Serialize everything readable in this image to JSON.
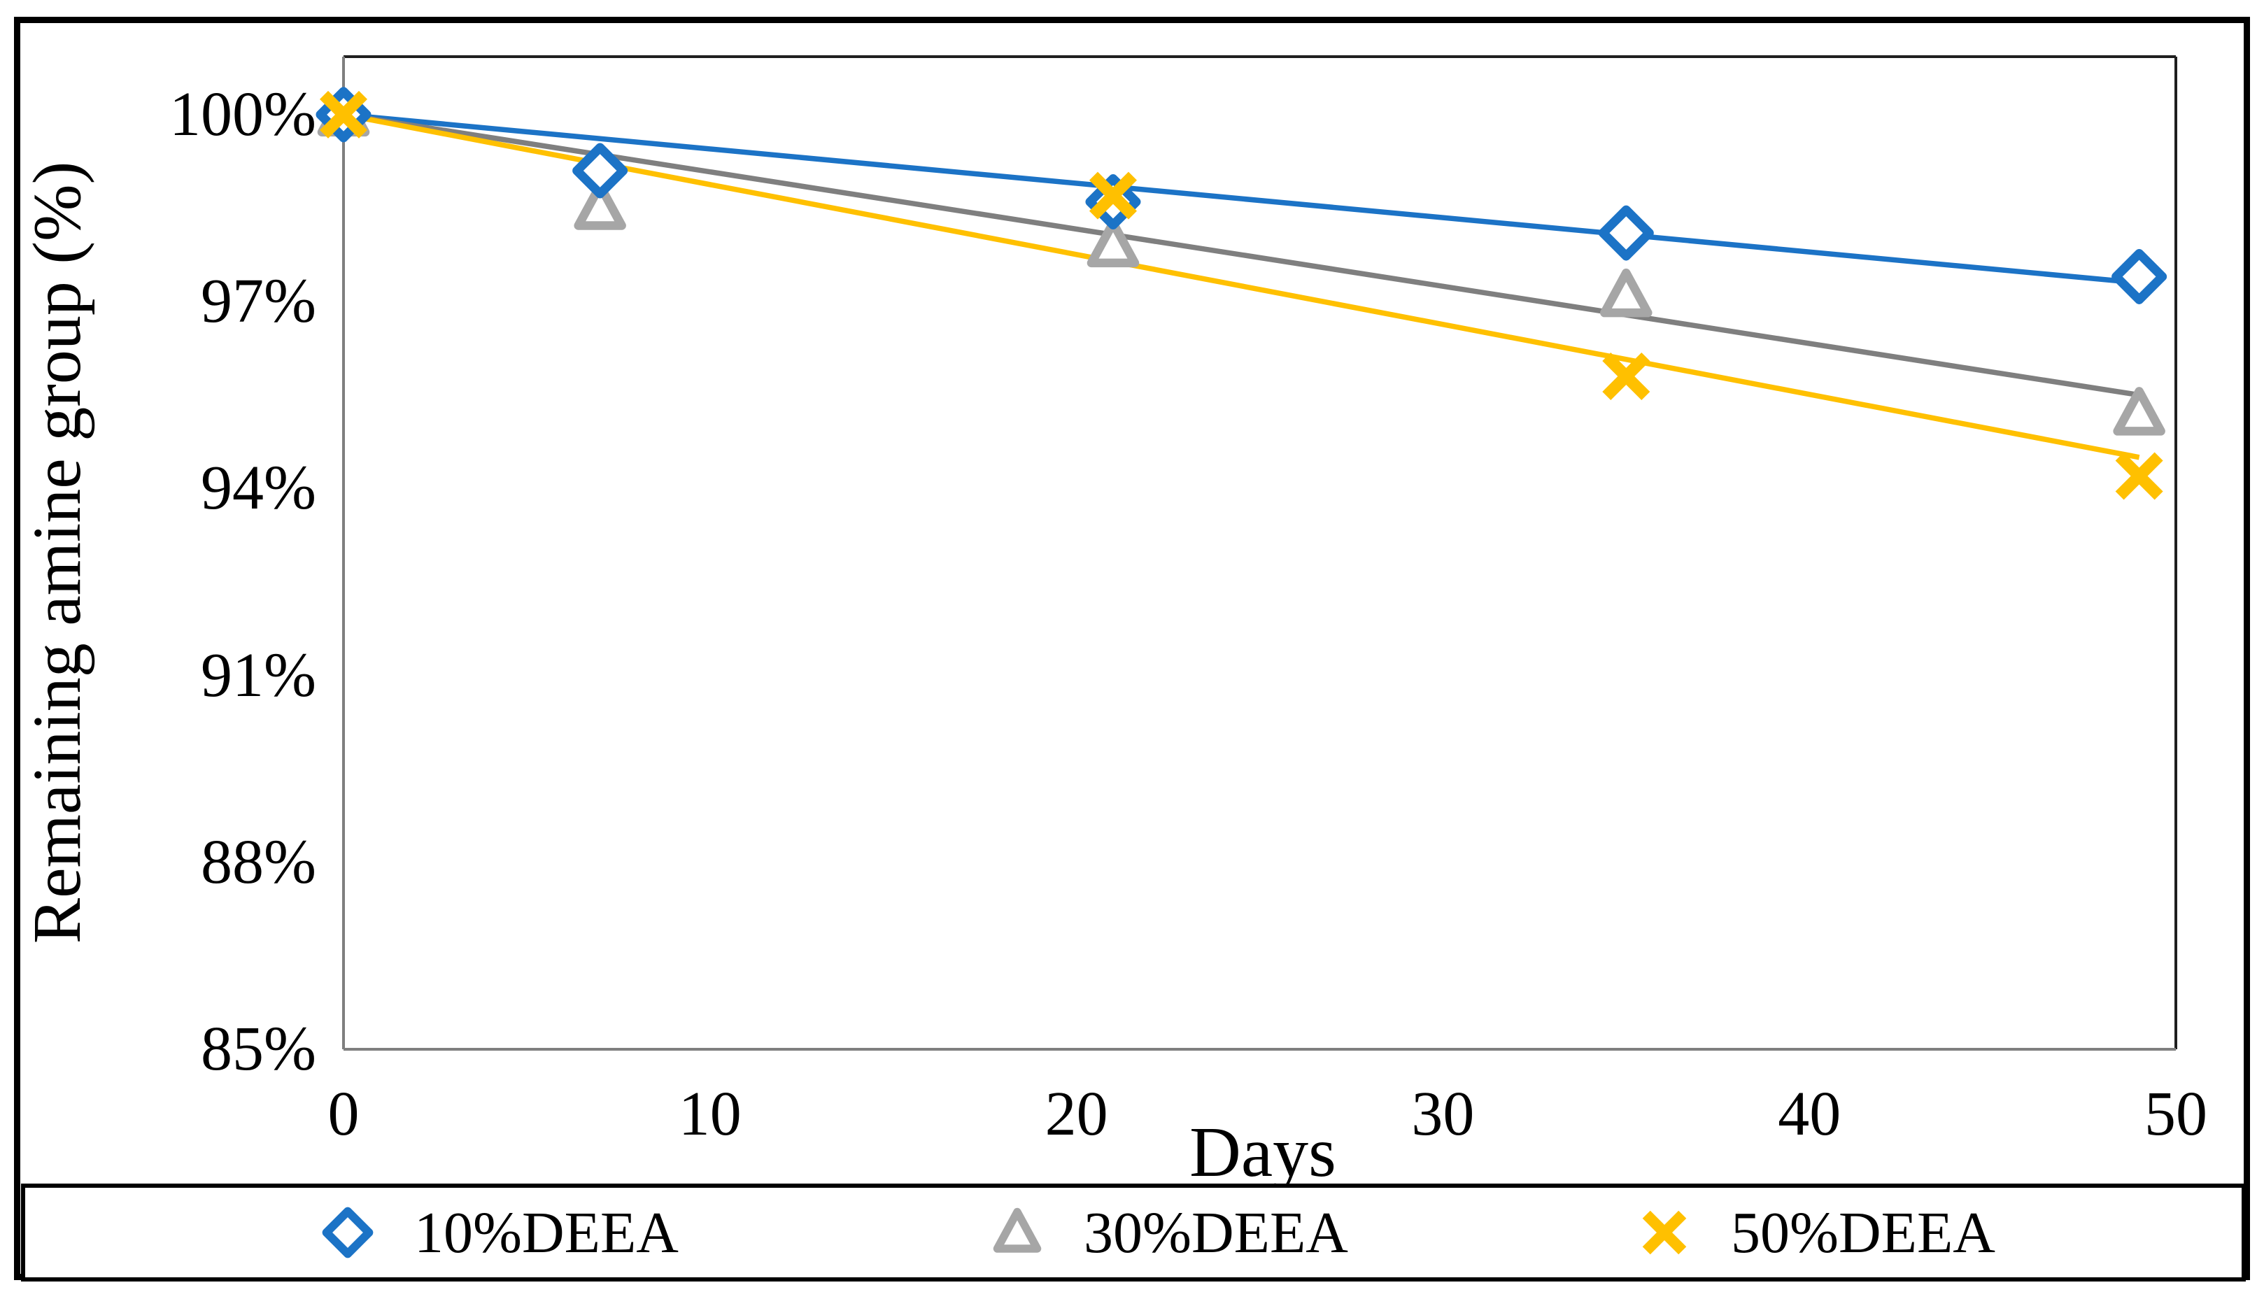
{
  "figure": {
    "background": "#ffffff",
    "border_color": "#000000"
  },
  "chart_data": {
    "type": "scatter",
    "title": "",
    "xlabel": "Days",
    "ylabel": "Remaining amine group (%)",
    "xlim": [
      0,
      50
    ],
    "ylim": [
      85,
      100.93
    ],
    "grid": false,
    "legend_position": "bottom",
    "frame": {
      "top": "#1f1f1f",
      "right": "#1f1f1f",
      "left": "#7f7f7f",
      "bottom": "#7f7f7f"
    },
    "x_ticks": [
      "0",
      "10",
      "20",
      "30",
      "40",
      "50"
    ],
    "x_tick_values": [
      0,
      10,
      20,
      30,
      40,
      50
    ],
    "y_ticks": [
      {
        "value": 100,
        "label": "100%"
      },
      {
        "value": 97,
        "label": "97%"
      },
      {
        "value": 94,
        "label": "94%"
      },
      {
        "value": 91,
        "label": "91%"
      },
      {
        "value": 88,
        "label": "88%"
      },
      {
        "value": 85,
        "label": "85%"
      }
    ],
    "series": [
      {
        "id": "10pct-deea",
        "name": "10%DEEA",
        "marker": "diamond",
        "color": "#1C73C6",
        "marker_fill": "#ffffff",
        "z": 2,
        "points": [
          {
            "x": 0,
            "y": 100.0
          },
          {
            "x": 7,
            "y": 99.1
          },
          {
            "x": 21,
            "y": 98.6
          },
          {
            "x": 35,
            "y": 98.1
          },
          {
            "x": 49,
            "y": 97.4
          }
        ],
        "trendline": {
          "x1": 0,
          "y1": 100.0,
          "x2": 49,
          "y2": 97.3,
          "color": "#1C73C6"
        }
      },
      {
        "id": "30pct-deea",
        "name": "30%DEEA",
        "marker": "triangle",
        "color": "#A6A6A6",
        "marker_fill": "#ffffff",
        "z": 1,
        "points": [
          {
            "x": 0,
            "y": 100.0
          },
          {
            "x": 7,
            "y": 98.5
          },
          {
            "x": 21,
            "y": 97.9
          },
          {
            "x": 35,
            "y": 97.1
          },
          {
            "x": 49,
            "y": 95.2
          }
        ],
        "trendline": {
          "x1": 0,
          "y1": 100.0,
          "x2": 49,
          "y2": 95.5,
          "color": "#7F7F7F"
        }
      },
      {
        "id": "50pct-deea",
        "name": "50%DEEA",
        "marker": "x",
        "color": "#FFC000",
        "marker_fill": "none",
        "z": 3,
        "points": [
          {
            "x": 0,
            "y": 100.0
          },
          {
            "x": 21,
            "y": 98.7
          },
          {
            "x": 35,
            "y": 95.8
          },
          {
            "x": 49,
            "y": 94.2
          }
        ],
        "trendline": {
          "x1": 0,
          "y1": 100.0,
          "x2": 49,
          "y2": 94.5,
          "color": "#FFC000"
        }
      }
    ]
  }
}
